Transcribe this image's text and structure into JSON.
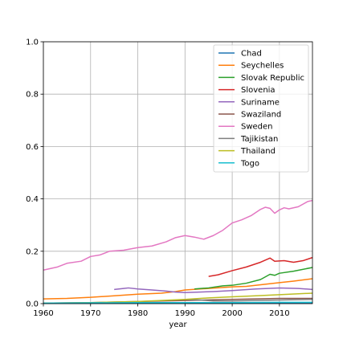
{
  "chart_data": {
    "type": "line",
    "title": "",
    "xlabel": "year",
    "ylabel": "",
    "xlim": [
      1960,
      2017
    ],
    "ylim": [
      0,
      1.0
    ],
    "x_ticks": [
      "1960",
      "1970",
      "1980",
      "1990",
      "2000",
      "2010"
    ],
    "y_ticks": [
      "0.0",
      "0.2",
      "0.4",
      "0.6",
      "0.8",
      "1.0"
    ],
    "grid": true,
    "legend_position": "top-right",
    "series": [
      {
        "name": "Chad",
        "color": "#1f77b4",
        "points": [
          [
            1960,
            0.002
          ],
          [
            1970,
            0.002
          ],
          [
            1980,
            0.002
          ],
          [
            1990,
            0.002
          ],
          [
            2000,
            0.002
          ],
          [
            2010,
            0.003
          ],
          [
            2017,
            0.003
          ]
        ]
      },
      {
        "name": "Seychelles",
        "color": "#ff7f0e",
        "points": [
          [
            1960,
            0.018
          ],
          [
            1965,
            0.02
          ],
          [
            1970,
            0.024
          ],
          [
            1975,
            0.03
          ],
          [
            1980,
            0.036
          ],
          [
            1985,
            0.04
          ],
          [
            1988,
            0.046
          ],
          [
            1990,
            0.052
          ],
          [
            1995,
            0.058
          ],
          [
            2000,
            0.064
          ],
          [
            2003,
            0.066
          ],
          [
            2007,
            0.074
          ],
          [
            2010,
            0.08
          ],
          [
            2013,
            0.086
          ],
          [
            2017,
            0.095
          ]
        ]
      },
      {
        "name": "Slovak Republic",
        "color": "#2ca02c",
        "points": [
          [
            1992,
            0.056
          ],
          [
            1995,
            0.06
          ],
          [
            1998,
            0.068
          ],
          [
            2000,
            0.07
          ],
          [
            2003,
            0.078
          ],
          [
            2006,
            0.092
          ],
          [
            2008,
            0.112
          ],
          [
            2009,
            0.108
          ],
          [
            2010,
            0.116
          ],
          [
            2013,
            0.124
          ],
          [
            2017,
            0.138
          ]
        ]
      },
      {
        "name": "Slovenia",
        "color": "#d62728",
        "points": [
          [
            1995,
            0.104
          ],
          [
            1997,
            0.11
          ],
          [
            2000,
            0.126
          ],
          [
            2003,
            0.14
          ],
          [
            2006,
            0.158
          ],
          [
            2008,
            0.174
          ],
          [
            2009,
            0.162
          ],
          [
            2011,
            0.164
          ],
          [
            2013,
            0.158
          ],
          [
            2015,
            0.164
          ],
          [
            2017,
            0.176
          ]
        ]
      },
      {
        "name": "Suriname",
        "color": "#9467bd",
        "points": [
          [
            1975,
            0.054
          ],
          [
            1977,
            0.058
          ],
          [
            1978,
            0.06
          ],
          [
            1980,
            0.056
          ],
          [
            1983,
            0.052
          ],
          [
            1986,
            0.048
          ],
          [
            1988,
            0.044
          ],
          [
            1990,
            0.042
          ],
          [
            1993,
            0.044
          ],
          [
            1996,
            0.046
          ],
          [
            2000,
            0.05
          ],
          [
            2005,
            0.056
          ],
          [
            2010,
            0.06
          ],
          [
            2014,
            0.058
          ],
          [
            2017,
            0.054
          ]
        ]
      },
      {
        "name": "Swaziland",
        "color": "#8c564b",
        "points": [
          [
            1960,
            0.002
          ],
          [
            1970,
            0.004
          ],
          [
            1980,
            0.008
          ],
          [
            1990,
            0.012
          ],
          [
            2000,
            0.016
          ],
          [
            2010,
            0.02
          ],
          [
            2017,
            0.02
          ]
        ]
      },
      {
        "name": "Sweden",
        "color": "#e377c2",
        "points": [
          [
            1960,
            0.128
          ],
          [
            1963,
            0.14
          ],
          [
            1965,
            0.154
          ],
          [
            1968,
            0.162
          ],
          [
            1970,
            0.18
          ],
          [
            1972,
            0.186
          ],
          [
            1974,
            0.2
          ],
          [
            1977,
            0.204
          ],
          [
            1980,
            0.214
          ],
          [
            1983,
            0.22
          ],
          [
            1986,
            0.236
          ],
          [
            1988,
            0.252
          ],
          [
            1990,
            0.26
          ],
          [
            1992,
            0.254
          ],
          [
            1994,
            0.246
          ],
          [
            1996,
            0.26
          ],
          [
            1998,
            0.28
          ],
          [
            2000,
            0.308
          ],
          [
            2002,
            0.32
          ],
          [
            2004,
            0.336
          ],
          [
            2006,
            0.36
          ],
          [
            2007,
            0.368
          ],
          [
            2008,
            0.364
          ],
          [
            2009,
            0.345
          ],
          [
            2010,
            0.358
          ],
          [
            2011,
            0.366
          ],
          [
            2012,
            0.362
          ],
          [
            2014,
            0.37
          ],
          [
            2015,
            0.38
          ],
          [
            2016,
            0.39
          ],
          [
            2017,
            0.394
          ]
        ]
      },
      {
        "name": "Tajikistan",
        "color": "#7f7f7f",
        "points": [
          [
            1990,
            0.016
          ],
          [
            1993,
            0.014
          ],
          [
            1996,
            0.01
          ],
          [
            2000,
            0.01
          ],
          [
            2005,
            0.012
          ],
          [
            2010,
            0.014
          ],
          [
            2017,
            0.016
          ]
        ]
      },
      {
        "name": "Thailand",
        "color": "#bcbd22",
        "points": [
          [
            1960,
            0.002
          ],
          [
            1970,
            0.004
          ],
          [
            1980,
            0.008
          ],
          [
            1990,
            0.016
          ],
          [
            1995,
            0.022
          ],
          [
            2000,
            0.026
          ],
          [
            2005,
            0.03
          ],
          [
            2010,
            0.034
          ],
          [
            2017,
            0.04
          ]
        ]
      },
      {
        "name": "Togo",
        "color": "#17becf",
        "points": [
          [
            1960,
            0.002
          ],
          [
            1970,
            0.003
          ],
          [
            1980,
            0.004
          ],
          [
            1990,
            0.004
          ],
          [
            2000,
            0.004
          ],
          [
            2010,
            0.005
          ],
          [
            2017,
            0.005
          ]
        ]
      }
    ]
  }
}
